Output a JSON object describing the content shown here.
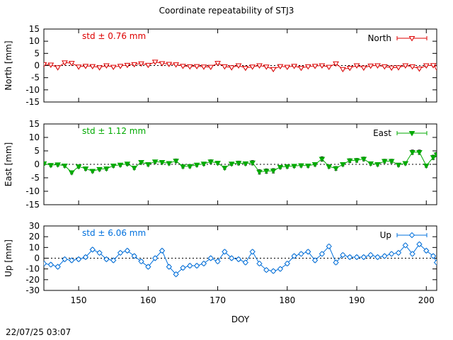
{
  "chart_data": [
    {
      "type": "line",
      "name": "north",
      "title": "Coordinate repeatability of STJ3",
      "ylabel": "North [mm]",
      "xlabel": "",
      "ylim": [
        -15,
        15
      ],
      "yticks": [
        -15,
        -10,
        -5,
        0,
        5,
        10,
        15
      ],
      "xlim": [
        145,
        201.5
      ],
      "xticks": [
        150,
        160,
        170,
        180,
        190,
        200
      ],
      "show_xtick_labels": false,
      "grid": false,
      "zero_line": true,
      "color": "#dd0000",
      "marker": "triangle-down-open",
      "legend": "North",
      "legend_position": "top-right",
      "annotation": "std ± 0.76 mm",
      "x": [
        145,
        146,
        147,
        148,
        149,
        150,
        151,
        152,
        153,
        154,
        155,
        156,
        157,
        158,
        159,
        160,
        161,
        162,
        163,
        164,
        165,
        166,
        167,
        168,
        169,
        170,
        171,
        172,
        173,
        174,
        175,
        176,
        177,
        178,
        179,
        180,
        181,
        182,
        183,
        184,
        185,
        186,
        187,
        188,
        189,
        190,
        191,
        192,
        193,
        194,
        195,
        196,
        197,
        198,
        199,
        200,
        201,
        201.5
      ],
      "values": [
        0.5,
        0.3,
        -0.8,
        1.2,
        1.0,
        -0.5,
        -0.2,
        -0.3,
        -0.8,
        0.0,
        -0.6,
        -0.2,
        0.2,
        0.5,
        0.8,
        0.2,
        1.5,
        0.9,
        0.6,
        0.4,
        -0.2,
        -0.4,
        -0.3,
        -0.5,
        -0.6,
        1.0,
        -0.4,
        -0.8,
        0.0,
        -1.0,
        -0.5,
        0.0,
        -0.5,
        -1.5,
        -0.3,
        -0.6,
        -0.2,
        -1.0,
        -0.4,
        -0.2,
        0.0,
        -0.6,
        0.8,
        -1.5,
        -1.0,
        0.0,
        -0.9,
        -0.1,
        0.0,
        -0.4,
        -0.9,
        -0.8,
        0.0,
        -0.4,
        -1.3,
        0.0,
        0.1,
        -0.9
      ],
      "errors": [
        0.4,
        0.4,
        0.4,
        0.4,
        0.4,
        0.4,
        0.4,
        0.4,
        0.4,
        0.4,
        0.4,
        0.4,
        0.4,
        0.4,
        0.4,
        0.4,
        0.4,
        0.4,
        0.4,
        0.4,
        0.4,
        0.4,
        0.4,
        0.4,
        0.4,
        0.5,
        0.4,
        0.4,
        0.4,
        0.4,
        0.4,
        0.4,
        0.4,
        0.4,
        0.4,
        0.4,
        0.4,
        0.4,
        0.4,
        0.4,
        0.4,
        0.4,
        0.5,
        0.4,
        0.4,
        0.4,
        0.4,
        0.4,
        0.4,
        0.4,
        0.4,
        0.4,
        0.4,
        0.4,
        0.4,
        0.5,
        0.4,
        0.4
      ]
    },
    {
      "type": "line",
      "name": "east",
      "ylabel": "East [mm]",
      "xlabel": "",
      "ylim": [
        -15,
        15
      ],
      "yticks": [
        -15,
        -10,
        -5,
        0,
        5,
        10,
        15
      ],
      "xlim": [
        145,
        201.5
      ],
      "xticks": [
        150,
        160,
        170,
        180,
        190,
        200
      ],
      "show_xtick_labels": false,
      "grid": false,
      "zero_line": true,
      "color": "#00aa00",
      "marker": "triangle-down-filled",
      "legend": "East",
      "legend_position": "top-right",
      "annotation": "std ± 1.12 mm",
      "x": [
        145,
        146,
        147,
        148,
        149,
        150,
        151,
        152,
        153,
        154,
        155,
        156,
        157,
        158,
        159,
        160,
        161,
        162,
        163,
        164,
        165,
        166,
        167,
        168,
        169,
        170,
        171,
        172,
        173,
        174,
        175,
        176,
        177,
        178,
        179,
        180,
        181,
        182,
        183,
        184,
        185,
        186,
        187,
        188,
        189,
        190,
        191,
        192,
        193,
        194,
        195,
        196,
        197,
        198,
        199,
        200,
        201,
        201.5
      ],
      "values": [
        0.3,
        -0.3,
        -0.1,
        -0.5,
        -3.0,
        -0.8,
        -1.6,
        -2.5,
        -1.8,
        -1.6,
        -0.5,
        -0.2,
        0.2,
        -1.3,
        0.8,
        0.0,
        1.0,
        0.8,
        0.4,
        1.3,
        -0.8,
        -0.7,
        -0.2,
        0.2,
        1.0,
        0.5,
        -1.3,
        0.2,
        0.5,
        0.3,
        0.6,
        -2.8,
        -2.5,
        -2.4,
        -1.0,
        -0.8,
        -0.6,
        -0.4,
        -0.5,
        0.0,
        2.0,
        -0.8,
        -1.5,
        0.0,
        1.4,
        1.5,
        2.0,
        0.3,
        0.0,
        1.2,
        1.2,
        -0.2,
        0.4,
        4.5,
        4.5,
        -0.5,
        2.6,
        3.6
      ],
      "errors": [
        0.6,
        0.6,
        0.6,
        0.6,
        0.6,
        0.6,
        0.6,
        0.6,
        0.6,
        0.6,
        0.6,
        0.6,
        0.6,
        0.6,
        0.6,
        0.6,
        0.6,
        0.6,
        0.6,
        0.7,
        0.6,
        0.6,
        0.6,
        0.6,
        0.7,
        0.6,
        0.6,
        0.6,
        0.7,
        0.6,
        0.8,
        0.8,
        0.8,
        0.8,
        0.6,
        0.6,
        0.6,
        0.6,
        0.6,
        0.6,
        0.8,
        0.6,
        0.7,
        0.6,
        0.7,
        0.7,
        0.7,
        0.6,
        0.6,
        0.7,
        0.7,
        0.6,
        0.6,
        0.8,
        0.8,
        0.6,
        0.8,
        0.8
      ]
    },
    {
      "type": "line",
      "name": "up",
      "ylabel": "Up [mm]",
      "xlabel": "DOY",
      "ylim": [
        -30,
        30
      ],
      "yticks": [
        -30,
        -20,
        -10,
        0,
        10,
        20,
        30
      ],
      "xlim": [
        145,
        201.5
      ],
      "xticks": [
        150,
        160,
        170,
        180,
        190,
        200
      ],
      "show_xtick_labels": true,
      "grid": false,
      "zero_line": true,
      "color": "#0070dd",
      "marker": "diamond-open",
      "legend": "Up",
      "legend_position": "top-right",
      "annotation": "std ± 6.06 mm",
      "x": [
        145,
        146,
        147,
        148,
        149,
        150,
        151,
        152,
        153,
        154,
        155,
        156,
        157,
        158,
        159,
        160,
        161,
        162,
        163,
        164,
        165,
        166,
        167,
        168,
        169,
        170,
        171,
        172,
        173,
        174,
        175,
        176,
        177,
        178,
        179,
        180,
        181,
        182,
        183,
        184,
        185,
        186,
        187,
        188,
        189,
        190,
        191,
        192,
        193,
        194,
        195,
        196,
        197,
        198,
        199,
        200,
        201,
        201.5
      ],
      "values": [
        -5,
        -6,
        -8,
        -1,
        -2,
        -1,
        1,
        8,
        5,
        -1,
        -2,
        5,
        7,
        2,
        -3,
        -8,
        0,
        7,
        -8,
        -15,
        -9,
        -7,
        -7,
        -5,
        0,
        -3,
        6,
        0,
        -1,
        -4,
        6,
        -5,
        -11,
        -12,
        -10,
        -5,
        2,
        4,
        6,
        -2,
        4,
        11,
        -4,
        3,
        1,
        1,
        1,
        3,
        1,
        2,
        4,
        5,
        12,
        4,
        13,
        7,
        2,
        -4
      ],
      "errors": [
        1.5,
        1.5,
        1.5,
        1.5,
        1.5,
        1.5,
        1.5,
        1.5,
        1.5,
        1.5,
        1.5,
        1.5,
        1.5,
        1.5,
        1.5,
        1.5,
        1.5,
        1.5,
        1.5,
        1.5,
        1.5,
        1.5,
        1.5,
        1.5,
        1.5,
        1.5,
        1.5,
        1.5,
        1.5,
        1.5,
        1.5,
        1.5,
        1.5,
        1.5,
        1.5,
        1.5,
        1.5,
        1.5,
        1.5,
        1.5,
        1.5,
        1.5,
        1.5,
        1.5,
        1.5,
        1.5,
        1.5,
        1.5,
        1.5,
        1.5,
        1.5,
        1.5,
        1.5,
        1.5,
        1.5,
        1.5,
        1.5,
        1.5
      ]
    }
  ],
  "timestamp": "22/07/25 03:07"
}
